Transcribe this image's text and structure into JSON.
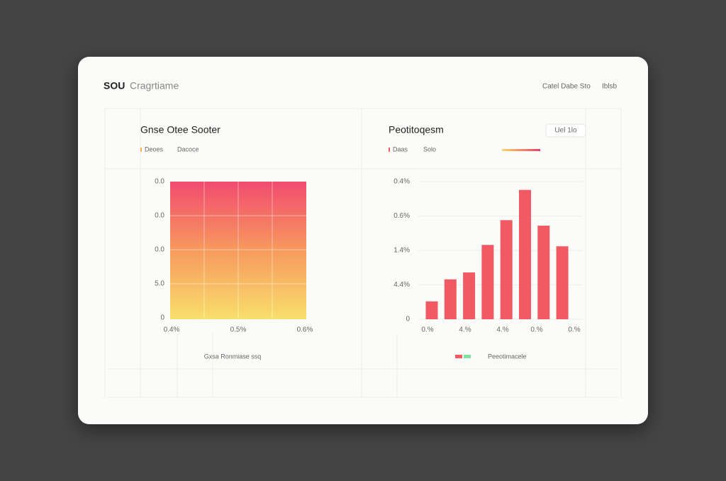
{
  "header": {
    "brand": "SOU",
    "title": "Cragrtiame",
    "links": [
      "Catel Dabe Sto",
      "Iblsb"
    ]
  },
  "left_panel": {
    "title": "Gnse Otee Sooter",
    "legend": [
      "Deoes",
      "Dacoce"
    ],
    "yticks": [
      "0.0",
      "0.0",
      "0.0",
      "5.0",
      "0"
    ],
    "xticks": [
      "0.4%",
      "0.5%",
      "0.6%"
    ],
    "caption": "Gxsa Ronmiase ssq"
  },
  "right_panel": {
    "title": "Peotitoqesm",
    "button": "Uel 1lo",
    "legend": [
      "Daas",
      "Solo"
    ],
    "chart": {
      "type": "bar",
      "values": [
        13,
        29,
        34,
        54,
        72,
        94,
        68,
        53
      ],
      "color": "#f25a63",
      "ylim": [
        0,
        100
      ],
      "yticks": [
        0,
        {
          "value": 25,
          "label": "4.4%"
        },
        {
          "value": 50,
          "label": "1.4%"
        },
        {
          "value": 75,
          "label": "0.6%"
        },
        {
          "value": 100,
          "label": "0.4%"
        }
      ],
      "xticks": [
        "0.%",
        "4.%",
        "4.%",
        "0.%",
        "0.%"
      ],
      "grid": true
    },
    "caption": "Peeotimacele"
  }
}
